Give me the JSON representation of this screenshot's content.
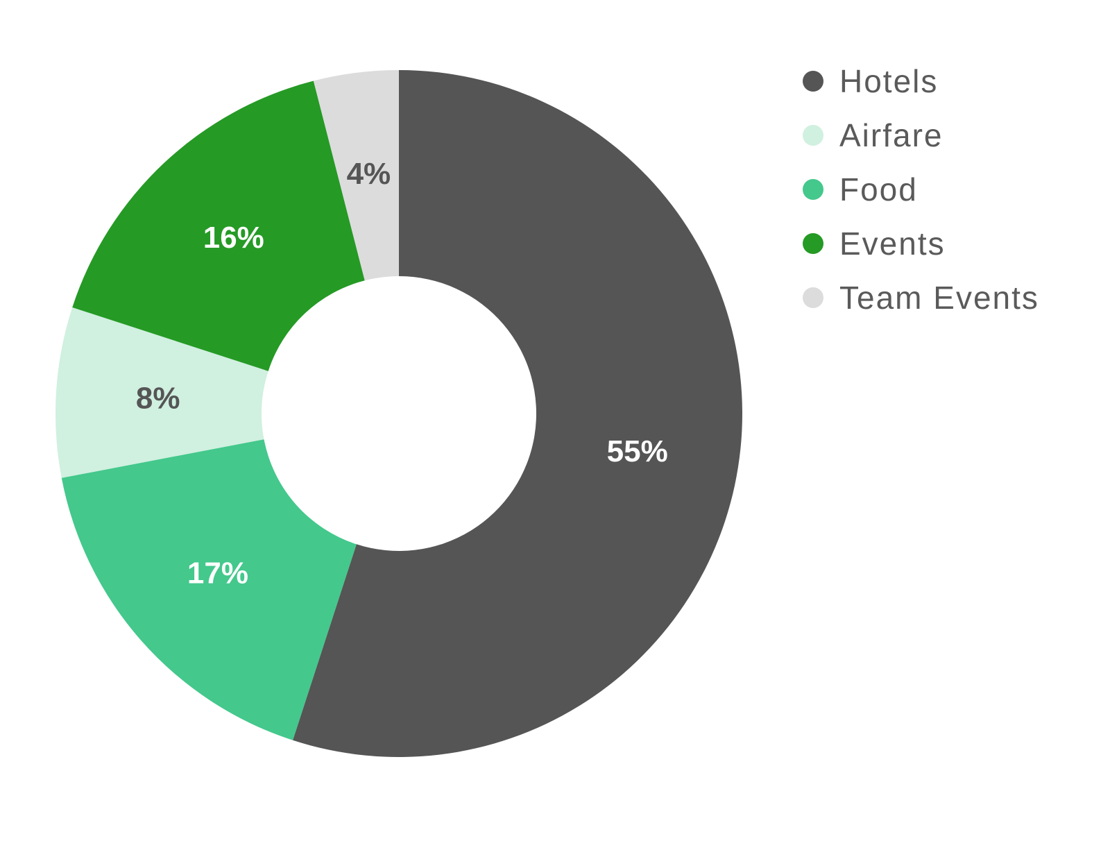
{
  "chart_data": {
    "type": "pie",
    "donut": true,
    "title": "",
    "legend_position": "top-right",
    "series": [
      {
        "name": "",
        "slices": [
          {
            "label": "Hotels",
            "value": 55,
            "display": "55%",
            "color": "#555555",
            "label_color": "#ffffff"
          },
          {
            "label": "Food",
            "value": 17,
            "display": "17%",
            "color": "#44c88c",
            "label_color": "#ffffff"
          },
          {
            "label": "Airfare",
            "value": 8,
            "display": "8%",
            "color": "#d0f0e0",
            "label_color": "#555555"
          },
          {
            "label": "Events",
            "value": 16,
            "display": "16%",
            "color": "#259a25",
            "label_color": "#ffffff"
          },
          {
            "label": "Team Events",
            "value": 4,
            "display": "4%",
            "color": "#dcdcdc",
            "label_color": "#555555"
          }
        ]
      }
    ],
    "legend": [
      {
        "label": "Hotels",
        "color": "#555555"
      },
      {
        "label": "Airfare",
        "color": "#d0f0e0"
      },
      {
        "label": "Food",
        "color": "#44c88c"
      },
      {
        "label": "Events",
        "color": "#259a25"
      },
      {
        "label": "Team Events",
        "color": "#dcdcdc"
      }
    ]
  }
}
